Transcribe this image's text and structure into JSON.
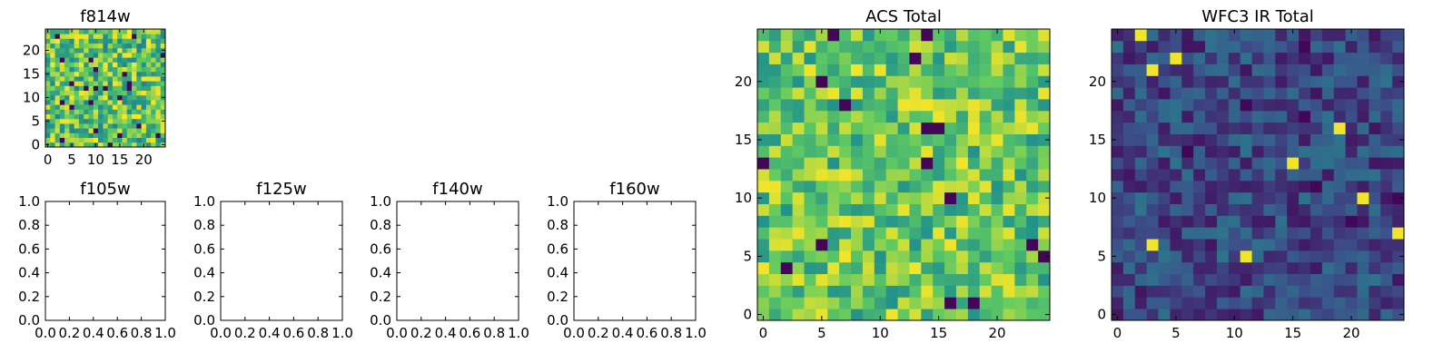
{
  "figure": {
    "background": "#ffffff"
  },
  "colormap": [
    "#440154",
    "#3b528b",
    "#21918c",
    "#5ec962",
    "#fde725"
  ],
  "chart_data": [
    {
      "id": "f814w",
      "type": "heatmap",
      "title": "f814w",
      "grid_size": 25,
      "xticks": [
        "0",
        "5",
        "10",
        "15",
        "20"
      ],
      "yticks": [
        "0",
        "5",
        "10",
        "15",
        "20"
      ],
      "xlim": [
        -0.5,
        24.5
      ],
      "ylim": [
        -0.5,
        24.5
      ],
      "value_range": [
        0,
        1
      ],
      "seed": 814,
      "baseline": 0.72,
      "spread": 0.28,
      "outlier_rate": 0.05
    },
    {
      "id": "f105w",
      "type": "empty",
      "title": "f105w",
      "xticks": [
        "0.0",
        "0.2",
        "0.4",
        "0.6",
        "0.8",
        "1.0"
      ],
      "yticks": [
        "0.0",
        "0.2",
        "0.4",
        "0.6",
        "0.8",
        "1.0"
      ],
      "xlim": [
        0,
        1
      ],
      "ylim": [
        0,
        1
      ]
    },
    {
      "id": "f125w",
      "type": "empty",
      "title": "f125w",
      "xticks": [
        "0.0",
        "0.2",
        "0.4",
        "0.6",
        "0.8",
        "1.0"
      ],
      "yticks": [
        "0.0",
        "0.2",
        "0.4",
        "0.6",
        "0.8",
        "1.0"
      ],
      "xlim": [
        0,
        1
      ],
      "ylim": [
        0,
        1
      ]
    },
    {
      "id": "f140w",
      "type": "empty",
      "title": "f140w",
      "xticks": [
        "0.0",
        "0.2",
        "0.4",
        "0.6",
        "0.8",
        "1.0"
      ],
      "yticks": [
        "0.0",
        "0.2",
        "0.4",
        "0.6",
        "0.8",
        "1.0"
      ],
      "xlim": [
        0,
        1
      ],
      "ylim": [
        0,
        1
      ]
    },
    {
      "id": "f160w",
      "type": "empty",
      "title": "f160w",
      "xticks": [
        "0.0",
        "0.2",
        "0.4",
        "0.6",
        "0.8",
        "1.0"
      ],
      "yticks": [
        "0.0",
        "0.2",
        "0.4",
        "0.6",
        "0.8",
        "1.0"
      ],
      "xlim": [
        0,
        1
      ],
      "ylim": [
        0,
        1
      ]
    },
    {
      "id": "acs-total",
      "type": "heatmap",
      "title": "ACS Total",
      "grid_size": 25,
      "xticks": [
        "0",
        "5",
        "10",
        "15",
        "20"
      ],
      "yticks": [
        "0",
        "5",
        "10",
        "15",
        "20"
      ],
      "xlim": [
        -0.5,
        24.5
      ],
      "ylim": [
        -0.5,
        24.5
      ],
      "value_range": [
        0,
        1
      ],
      "seed": 1001,
      "baseline": 0.74,
      "spread": 0.24,
      "outlier_rate": 0.04
    },
    {
      "id": "wfc3-ir-total",
      "type": "heatmap",
      "title": "WFC3 IR Total",
      "grid_size": 25,
      "xticks": [
        "0",
        "5",
        "10",
        "15",
        "20"
      ],
      "yticks": [
        "0",
        "5",
        "10",
        "15",
        "20"
      ],
      "xlim": [
        -0.5,
        24.5
      ],
      "ylim": [
        -0.5,
        24.5
      ],
      "value_range": [
        0,
        1
      ],
      "seed": 2002,
      "baseline": 0.22,
      "spread": 0.16,
      "outlier_rate": 0.04
    }
  ]
}
